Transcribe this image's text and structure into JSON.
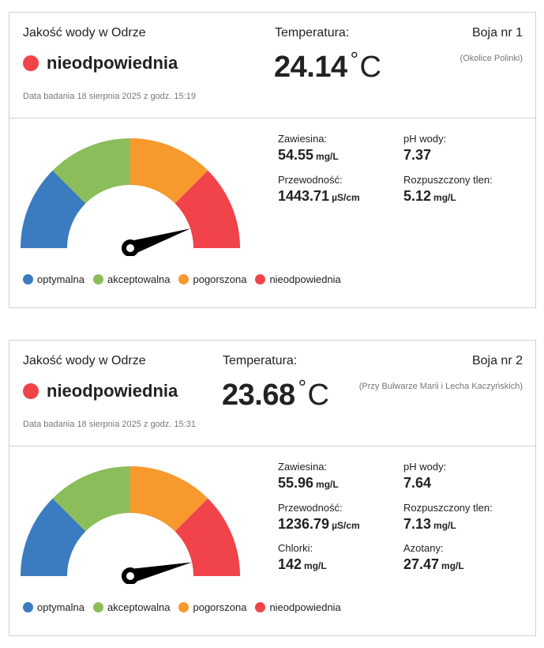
{
  "colors": {
    "optymalna": "#3b7bbf",
    "akceptowalna": "#8bbd5a",
    "pogorszona": "#f7992c",
    "nieodpowiednia": "#f0434a"
  },
  "legend": [
    "optymalna",
    "akceptowalna",
    "pogorszona",
    "nieodpowiednia"
  ],
  "buoys": [
    {
      "quality_label": "Jakość wody w Odrze",
      "status": "nieodpowiednia",
      "status_color": "#f0434a",
      "date": "Data badania 18 sierpnia 2025 z godz. 15:19",
      "temp_label": "Temperatura:",
      "temp_value": "24.14",
      "temp_deg": "°",
      "temp_unit": "C",
      "buoy_name": "Boja nr 1",
      "location": "(Okolice Polinki)",
      "gauge_level": 0.9,
      "params": [
        {
          "label": "Zawiesina:",
          "value": "54.55",
          "unit": "mg/L"
        },
        {
          "label": "pH wody:",
          "value": "7.37",
          "unit": ""
        },
        {
          "label": "Przewodność:",
          "value": "1443.71",
          "unit": "µS/cm"
        },
        {
          "label": "Rozpuszczony tlen:",
          "value": "5.12",
          "unit": "mg/L"
        }
      ]
    },
    {
      "quality_label": "Jakość wody w Odrze",
      "status": "nieodpowiednia",
      "status_color": "#f0434a",
      "date": "Data badania 18 sierpnia 2025 z godz. 15:31",
      "temp_label": "Temperatura:",
      "temp_value": "23.68",
      "temp_deg": "°",
      "temp_unit": "C",
      "buoy_name": "Boja nr 2",
      "location": "(Przy Bulwarze Marii i Lecha Kaczyńskich)",
      "gauge_level": 0.93,
      "params": [
        {
          "label": "Zawiesina:",
          "value": "55.96",
          "unit": "mg/L"
        },
        {
          "label": "pH wody:",
          "value": "7.64",
          "unit": ""
        },
        {
          "label": "Przewodność:",
          "value": "1236.79",
          "unit": "µS/cm"
        },
        {
          "label": "Rozpuszczony tlen:",
          "value": "7.13",
          "unit": "mg/L"
        },
        {
          "label": "Chlorki:",
          "value": "142",
          "unit": "mg/L"
        },
        {
          "label": "Azotany:",
          "value": "27.47",
          "unit": "mg/L"
        }
      ]
    }
  ]
}
